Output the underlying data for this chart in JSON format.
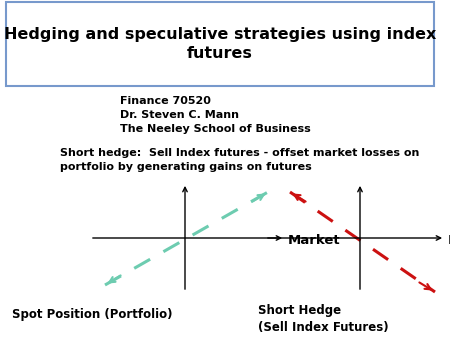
{
  "title": "Hedging and speculative strategies using index\nfutures",
  "title_fontsize": 11.5,
  "subtitle_lines": [
    "Finance 70520",
    "Dr. Steven C. Mann",
    "The Neeley School of Business"
  ],
  "subtitle_fontsize": 8,
  "description": "Short hedge:  Sell Index futures - offset market losses on\nportfolio by generating gains on futures",
  "description_fontsize": 8,
  "left_label": "Spot Position (Portfolio)",
  "right_label": "Short Hedge\n(Sell Index Futures)",
  "market_label": "Market",
  "left_line_color": "#6dccb0",
  "right_line_color": "#cc1111",
  "background_color": "#ffffff",
  "border_color": "#7799cc"
}
